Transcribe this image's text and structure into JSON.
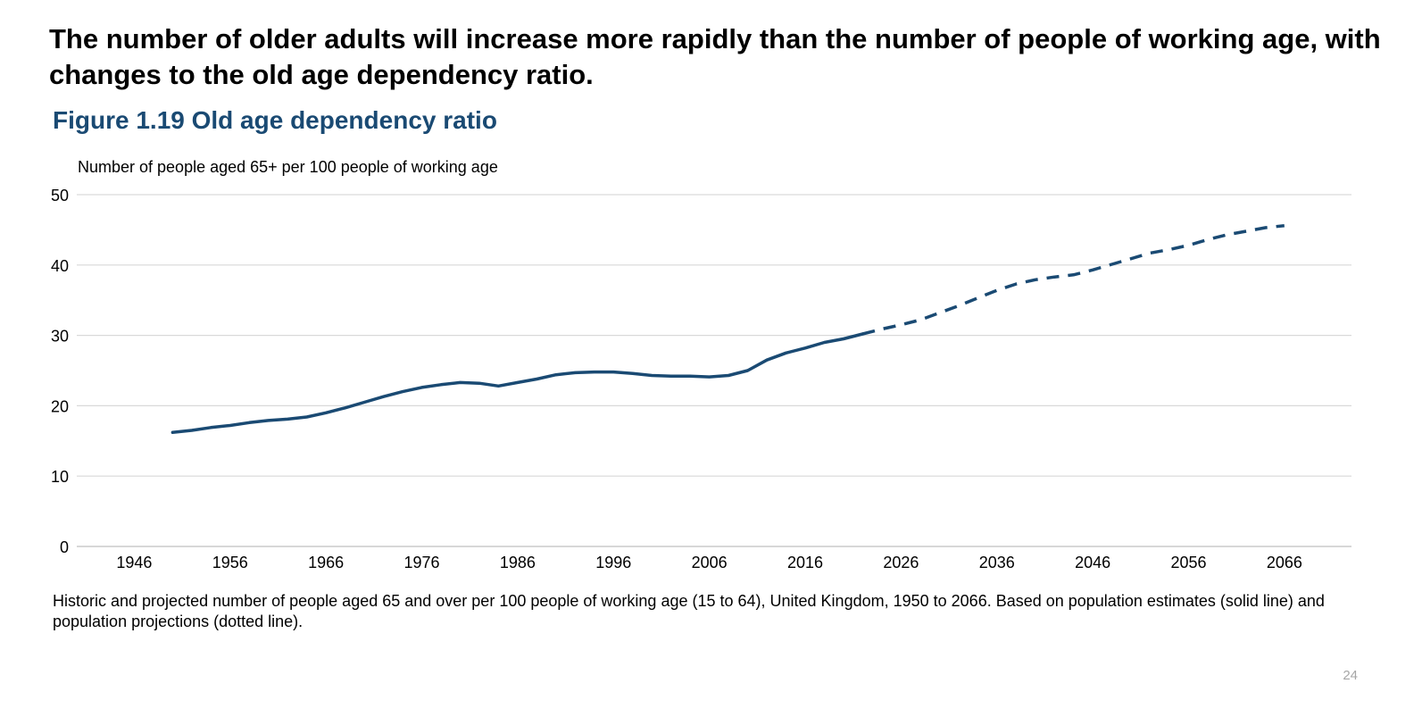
{
  "headline": "The number of older adults will increase more rapidly than the number of people of working age, with changes to the old age dependency ratio.",
  "figure_title": "Figure 1.19 Old age dependency ratio",
  "caption": "Historic and projected number of people aged 65 and over per 100 people of working age (15 to 64), United Kingdom, 1950 to 2066. Based on population estimates (solid line) and population projections (dotted line).",
  "page_number": "24",
  "colors": {
    "series": "#1a4a73",
    "title": "#1a4a73",
    "grid": "#d9d9d9",
    "page_number": "#a6a6a6"
  },
  "chart_data": {
    "type": "line",
    "title": "Figure 1.19 Old age dependency ratio",
    "ylabel": "Number of people aged 65+ per 100 people of working age",
    "xlabel": "",
    "xlim": [
      1940,
      2073
    ],
    "ylim": [
      0,
      50
    ],
    "yticks": [
      0,
      10,
      20,
      30,
      40,
      50
    ],
    "xticks": [
      1946,
      1956,
      1966,
      1976,
      1986,
      1996,
      2006,
      2016,
      2026,
      2036,
      2046,
      2056,
      2066
    ],
    "grid": true,
    "series": [
      {
        "name": "Population estimates",
        "style": "solid",
        "x": [
          1950,
          1952,
          1954,
          1956,
          1958,
          1960,
          1962,
          1964,
          1966,
          1968,
          1970,
          1972,
          1974,
          1976,
          1978,
          1980,
          1982,
          1984,
          1986,
          1988,
          1990,
          1992,
          1994,
          1996,
          1998,
          2000,
          2002,
          2004,
          2006,
          2008,
          2010,
          2012,
          2014,
          2016,
          2018,
          2020,
          2022
        ],
        "values": [
          16.2,
          16.5,
          16.9,
          17.2,
          17.6,
          17.9,
          18.1,
          18.4,
          19.0,
          19.7,
          20.5,
          21.3,
          22.0,
          22.6,
          23.0,
          23.3,
          23.2,
          22.8,
          23.3,
          23.8,
          24.4,
          24.7,
          24.8,
          24.8,
          24.6,
          24.3,
          24.2,
          24.2,
          24.1,
          24.3,
          25.0,
          26.5,
          27.5,
          28.2,
          29.0,
          29.5,
          30.2
        ]
      },
      {
        "name": "Population projections",
        "style": "dashed",
        "x": [
          2022,
          2024,
          2026,
          2028,
          2030,
          2032,
          2034,
          2036,
          2038,
          2040,
          2042,
          2044,
          2046,
          2048,
          2050,
          2052,
          2054,
          2056,
          2058,
          2060,
          2062,
          2064,
          2066
        ],
        "values": [
          30.2,
          30.9,
          31.5,
          32.2,
          33.2,
          34.2,
          35.3,
          36.4,
          37.3,
          37.9,
          38.3,
          38.6,
          39.3,
          40.1,
          40.9,
          41.7,
          42.2,
          42.8,
          43.6,
          44.3,
          44.8,
          45.3,
          45.6
        ]
      }
    ]
  }
}
